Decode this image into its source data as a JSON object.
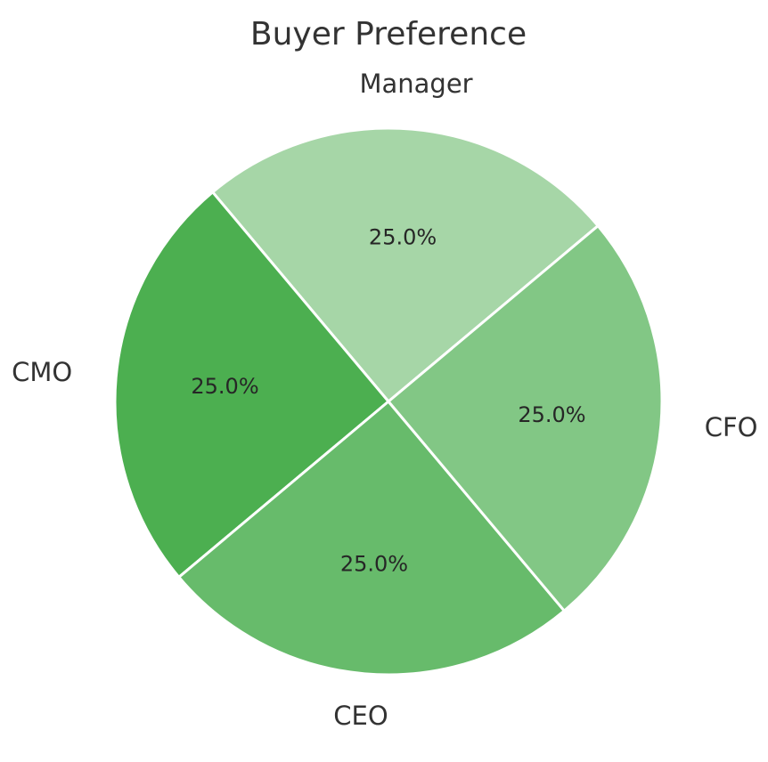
{
  "chart_data": {
    "type": "pie",
    "title": "Buyer Preference",
    "start_angle_deg": 40,
    "direction": "counterclockwise",
    "slices": [
      {
        "label": "Manager",
        "value": 25.0,
        "percent_label": "25.0%",
        "color": "#a6d6a7"
      },
      {
        "label": "CMO",
        "value": 25.0,
        "percent_label": "25.0%",
        "color": "#4caf50"
      },
      {
        "label": "CEO",
        "value": 25.0,
        "percent_label": "25.0%",
        "color": "#67bb6b"
      },
      {
        "label": "CFO",
        "value": 25.0,
        "percent_label": "25.0%",
        "color": "#82c785"
      }
    ],
    "edge_color": "#ffffff"
  }
}
